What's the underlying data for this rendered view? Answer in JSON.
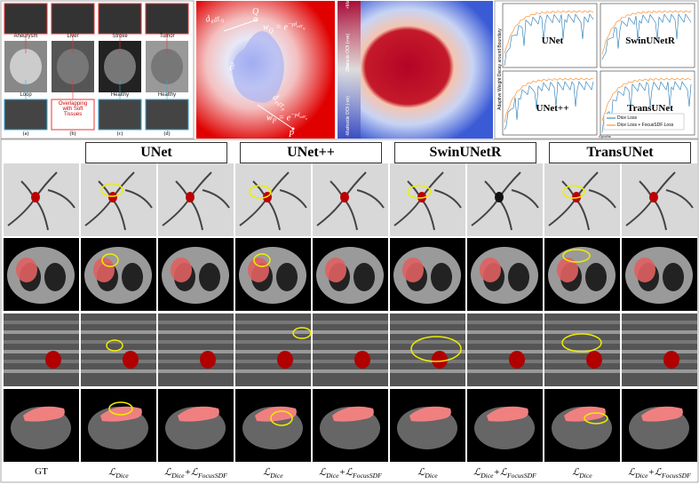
{
  "panel_a": {
    "top_labels": [
      "Aneurysm",
      "Liver",
      "Stroke",
      "Tumor"
    ],
    "bottom_labels": [
      "Loop",
      "Overlapping with Soft Tissues",
      "Healthy",
      "Healthy"
    ],
    "captions": [
      "(a)",
      "(b)",
      "(c)",
      "(d)"
    ]
  },
  "panel_b": {
    "boundary": "∂",
    "point_q": "Q",
    "point_p": "P",
    "dist_q": [
      {
        "t": "d",
        "s": "edT",
        "s2": "Q"
      }
    ],
    "dist_p": [
      {
        "t": "d",
        "s": "edT",
        "s2": "P"
      }
    ],
    "weight_q": [
      {
        "t": "w",
        "s": "Q"
      },
      {
        "t": " = e"
      },
      {
        "sup": "−γd",
        "supsub": "edT",
        "supsub2": "Q"
      }
    ],
    "weight_p": [
      {
        "t": "w",
        "s": "P"
      },
      {
        "t": " = e"
      },
      {
        "sup": "−γd",
        "supsub": "edT",
        "supsub2": "P"
      }
    ]
  },
  "panel_c": {
    "axis_labels": [
      "+Max",
      "Outside OOI (+ve)",
      "Zero",
      "Inside OOI (-ve)",
      "-Max"
    ]
  },
  "panel_d": {
    "y_label": "Adaptive Weight Decay around Boundary",
    "x_label": "Epochs",
    "subplots": [
      "UNet",
      "SwinUNetR",
      "UNet++",
      "TransUNet"
    ],
    "legend": [
      "Dice Loss",
      "Dice Loss + FocusSDF Loss"
    ]
  },
  "comparison": {
    "models": [
      "UNet",
      "UNet++",
      "SwinUNetR",
      "TransUNet"
    ],
    "column_labels": [
      [
        {
          "t": "GT"
        }
      ],
      [
        {
          "t": "ℒ",
          "s": "Dice"
        }
      ],
      [
        {
          "t": "ℒ",
          "s": "Dice"
        },
        {
          "t": "+"
        },
        {
          "t": "ℒ",
          "s": "FocusSDF"
        }
      ],
      [
        {
          "t": "ℒ",
          "s": "Dice"
        }
      ],
      [
        {
          "t": "ℒ",
          "s": "Dice"
        },
        {
          "t": "+"
        },
        {
          "t": "ℒ",
          "s": "FocusSDF"
        }
      ],
      [
        {
          "t": "ℒ",
          "s": "Dice"
        }
      ],
      [
        {
          "t": "ℒ",
          "s": "Dice"
        },
        {
          "t": "+"
        },
        {
          "t": "ℒ",
          "s": "FocusSDF"
        }
      ],
      [
        {
          "t": "ℒ",
          "s": "Dice"
        }
      ],
      [
        {
          "t": "ℒ",
          "s": "Dice"
        },
        {
          "t": "+"
        },
        {
          "t": "ℒ",
          "s": "FocusSDF"
        }
      ]
    ]
  }
}
